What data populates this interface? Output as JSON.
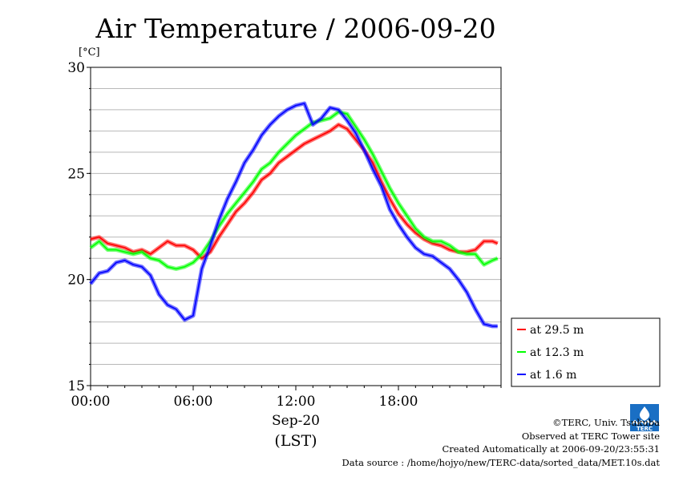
{
  "chart_data": {
    "type": "line",
    "title": "Air Temperature / 2006-09-20",
    "ylabel": "[°C]",
    "xlabel_line1": "Sep-20",
    "xlabel_line2": "(LST)",
    "xlim_hours": [
      0,
      24
    ],
    "ylim": [
      15,
      30
    ],
    "yticks": [
      "15",
      "20",
      "25",
      "30"
    ],
    "xticks": [
      "00:00",
      "06:00",
      "12:00",
      "18:00"
    ],
    "xtick_hours": [
      0,
      6,
      12,
      18
    ],
    "grid": true,
    "legend_position": "right",
    "x_hours": [
      0,
      0.5,
      1,
      1.5,
      2,
      2.5,
      3,
      3.5,
      4,
      4.5,
      5,
      5.5,
      6,
      6.5,
      7,
      7.5,
      8,
      8.5,
      9,
      9.5,
      10,
      10.5,
      11,
      11.5,
      12,
      12.5,
      13,
      13.5,
      14,
      14.5,
      15,
      15.5,
      16,
      16.5,
      17,
      17.5,
      18,
      18.5,
      19,
      19.5,
      20,
      20.5,
      21,
      21.5,
      22,
      22.5,
      23,
      23.5,
      23.8
    ],
    "series": [
      {
        "name": "at 29.5 m",
        "color": "#ff0000",
        "values": [
          21.9,
          22.0,
          21.7,
          21.6,
          21.5,
          21.3,
          21.4,
          21.2,
          21.5,
          21.8,
          21.6,
          21.6,
          21.4,
          21.0,
          21.3,
          22.0,
          22.6,
          23.2,
          23.6,
          24.1,
          24.7,
          25.0,
          25.5,
          25.8,
          26.1,
          26.4,
          26.6,
          26.8,
          27.0,
          27.3,
          27.1,
          26.6,
          26.1,
          25.5,
          24.6,
          23.8,
          23.1,
          22.6,
          22.2,
          21.9,
          21.7,
          21.6,
          21.4,
          21.3,
          21.3,
          21.4,
          21.8,
          21.8,
          21.7
        ]
      },
      {
        "name": "at 12.3 m",
        "color": "#00ff00",
        "values": [
          21.5,
          21.8,
          21.4,
          21.4,
          21.3,
          21.2,
          21.3,
          21.0,
          20.9,
          20.6,
          20.5,
          20.6,
          20.8,
          21.2,
          21.8,
          22.5,
          23.1,
          23.6,
          24.1,
          24.6,
          25.2,
          25.5,
          26.0,
          26.4,
          26.8,
          27.1,
          27.4,
          27.5,
          27.6,
          27.9,
          27.8,
          27.2,
          26.6,
          25.9,
          25.1,
          24.3,
          23.6,
          23.0,
          22.4,
          22.0,
          21.8,
          21.8,
          21.6,
          21.3,
          21.2,
          21.2,
          20.7,
          20.9,
          21.0
        ]
      },
      {
        "name": "at 1.6 m",
        "color": "#0000ff",
        "values": [
          19.8,
          20.3,
          20.4,
          20.8,
          20.9,
          20.7,
          20.6,
          20.2,
          19.3,
          18.8,
          18.6,
          18.1,
          18.3,
          20.5,
          21.6,
          22.8,
          23.8,
          24.6,
          25.5,
          26.1,
          26.8,
          27.3,
          27.7,
          28.0,
          28.2,
          28.3,
          27.3,
          27.6,
          28.1,
          28.0,
          27.5,
          26.9,
          26.1,
          25.2,
          24.4,
          23.3,
          22.6,
          22.0,
          21.5,
          21.2,
          21.1,
          20.8,
          20.5,
          20.0,
          19.4,
          18.6,
          17.9,
          17.8,
          17.8
        ]
      }
    ]
  },
  "credits": {
    "copyright": "©TERC, Univ. Tsukuba",
    "observed": "Observed at TERC Tower site",
    "created": "Created Automatically at 2006-09-20/23:55:31",
    "source": "Data source : /home/hojyo/new/TERC-data/sorted_data/MET.10s.dat"
  },
  "logo": {
    "text": "TERC",
    "color": "#1a6fc4"
  }
}
